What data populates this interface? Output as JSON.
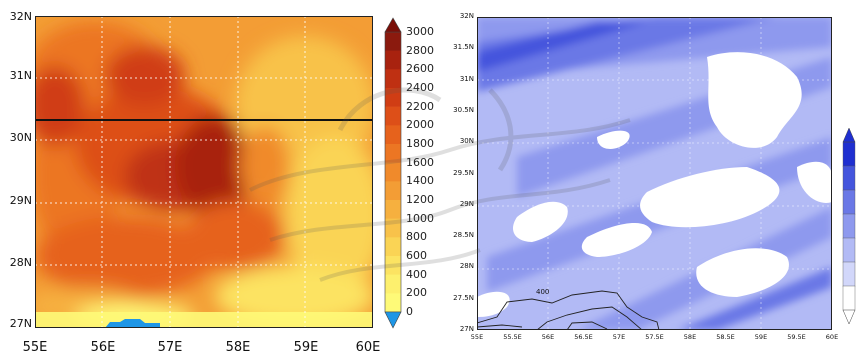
{
  "left_map": {
    "lat_labels": [
      "32N",
      "31N",
      "30N",
      "29N",
      "28N",
      "27N"
    ],
    "lon_labels": [
      "55E",
      "56E",
      "57E",
      "58E",
      "59E",
      "60E"
    ],
    "colorbar": {
      "labels": [
        "3000",
        "2800",
        "2600",
        "2400",
        "2200",
        "2000",
        "1800",
        "1600",
        "1400",
        "1200",
        "1000",
        "800",
        "600",
        "400",
        "200",
        "0"
      ],
      "colors": [
        "#8b1a0e",
        "#a8220f",
        "#bf3012",
        "#d03d14",
        "#dd4f18",
        "#e6621c",
        "#ec7623",
        "#f08a2b",
        "#f39d35",
        "#f6b03f",
        "#f8c24a",
        "#fad455",
        "#fce362",
        "#fdf06e",
        "#fefa78"
      ],
      "low_color": "#1e96e6",
      "high_color": "#7a0f08"
    },
    "reference_line_lat": "30.3N"
  },
  "right_map": {
    "lat_labels": [
      "32N",
      "31.5N",
      "31N",
      "30.5N",
      "30N",
      "29.5N",
      "29N",
      "28.5N",
      "28N",
      "27.5N",
      "27N"
    ],
    "lon_labels": [
      "55E",
      "55.5E",
      "56E",
      "56.5E",
      "57E",
      "57.5E",
      "58E",
      "58.5E",
      "59E",
      "59.5E",
      "60E"
    ],
    "contour_label": "400",
    "colorbar_colors": [
      "#1f2fd0",
      "#4455dd",
      "#6a78e6",
      "#8e99ee",
      "#b2baf5",
      "#d2d7fa",
      "#ffffff"
    ]
  }
}
